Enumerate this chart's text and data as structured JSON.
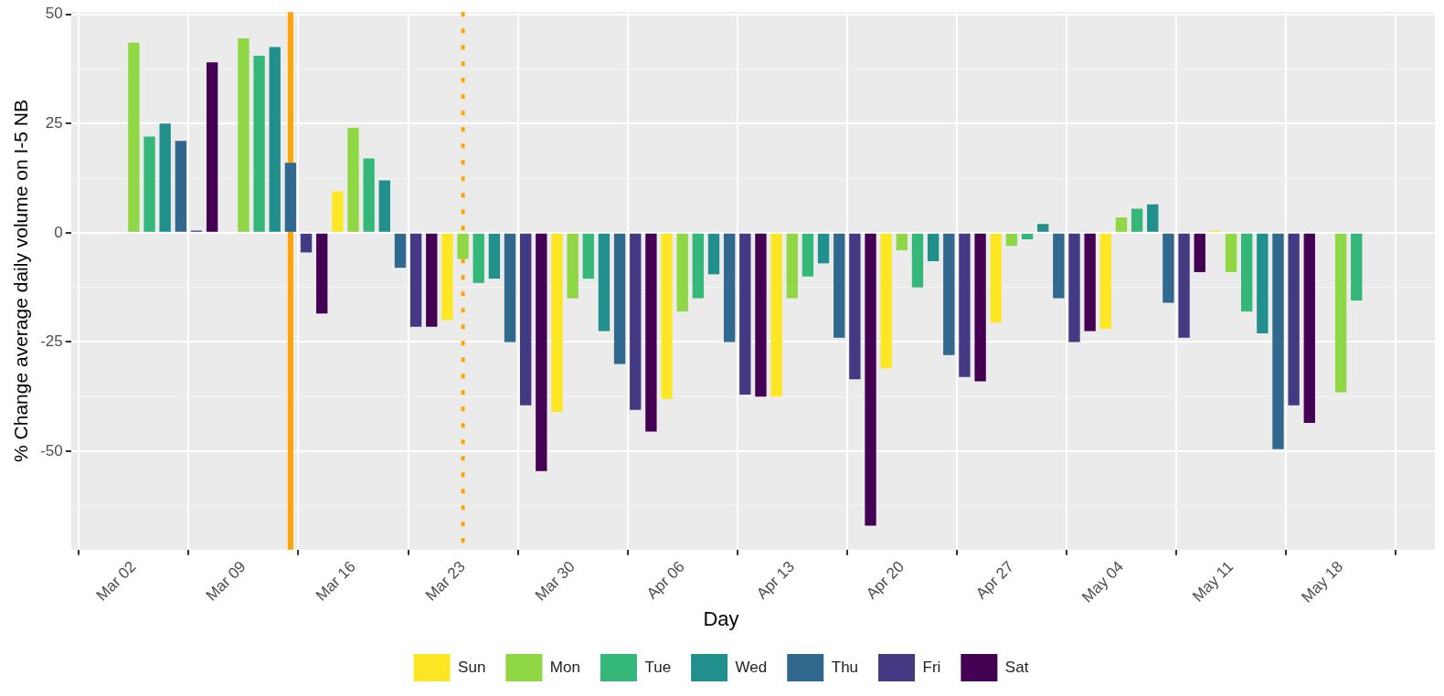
{
  "chart_data": {
    "type": "bar",
    "ylabel": "% Change average daily volume on I-5 NB",
    "legend_title": "Day",
    "legend": "bottom",
    "grid": true,
    "xlim": [
      "--02-27",
      "--05-24"
    ],
    "xticks": [
      {
        "value": "--03-02",
        "label": "Mar 02"
      },
      {
        "value": "--03-09",
        "label": "Mar 09"
      },
      {
        "value": "--03-16",
        "label": "Mar 16"
      },
      {
        "value": "--03-23",
        "label": "Mar 23"
      },
      {
        "value": "--03-30",
        "label": "Mar 30"
      },
      {
        "value": "--04-06",
        "label": "Apr 06"
      },
      {
        "value": "--04-13",
        "label": "Apr 13"
      },
      {
        "value": "--04-20",
        "label": "Apr 20"
      },
      {
        "value": "--04-27",
        "label": "Apr 27"
      },
      {
        "value": "--05-04",
        "label": "May 04"
      },
      {
        "value": "--05-11",
        "label": "May 11"
      },
      {
        "value": "--05-18",
        "label": "May 18"
      }
    ],
    "ylim": [
      -72.5,
      50.5
    ],
    "yticks": [
      {
        "value": -62.5,
        "label": null
      },
      -50,
      {
        "value": -37.5,
        "label": null
      },
      -25,
      {
        "value": -12.5,
        "label": null
      },
      0,
      {
        "value": 12.5,
        "label": null
      },
      25,
      {
        "value": 37.5,
        "label": null
      },
      50
    ],
    "ref_lines": [
      {
        "axis": "x",
        "value": "--03-12",
        "color": "#ffa500",
        "line_style": "solid"
      },
      {
        "axis": "x",
        "value": "--03-23",
        "color": "#ffa500",
        "line_style": "dotted"
      }
    ],
    "series": [
      {
        "name": "Sun",
        "color": "#fde725",
        "x": [
          "--03-15",
          "--03-22",
          "--03-29",
          "--04-05",
          "--04-12",
          "--04-19",
          "--04-26",
          "--05-03",
          "--05-10"
        ],
        "values": [
          9.5,
          -20,
          -41,
          -38,
          -37.5,
          -31,
          -20.5,
          -22,
          0.5
        ]
      },
      {
        "name": "Mon",
        "color": "#8fd744",
        "x": [
          "--03-02",
          "--03-09",
          "--03-16",
          "--03-23",
          "--03-30",
          "--04-06",
          "--04-13",
          "--04-20",
          "--04-27",
          "--05-04",
          "--05-11",
          "--05-18"
        ],
        "values": [
          43.5,
          44.5,
          24,
          -6,
          -15,
          -18,
          -15,
          -4,
          -3,
          3.5,
          -9,
          -36.5
        ]
      },
      {
        "name": "Tue",
        "color": "#35b779",
        "x": [
          "--03-03",
          "--03-10",
          "--03-17",
          "--03-24",
          "--03-31",
          "--04-07",
          "--04-14",
          "--04-21",
          "--04-28",
          "--05-05",
          "--05-12",
          "--05-19"
        ],
        "values": [
          22,
          40.5,
          17,
          -11.5,
          -10.5,
          -15,
          -10,
          -12.5,
          -1.5,
          5.5,
          -18,
          -15.5
        ]
      },
      {
        "name": "Wed",
        "color": "#21908d",
        "x": [
          "--03-04",
          "--03-11",
          "--03-18",
          "--03-25",
          "--04-01",
          "--04-08",
          "--04-15",
          "--04-22",
          "--04-29",
          "--05-06",
          "--05-13"
        ],
        "values": [
          25,
          42.5,
          12,
          -10.5,
          -22.5,
          -9.5,
          -7,
          -6.5,
          2,
          6.5,
          -23
        ]
      },
      {
        "name": "Thu",
        "color": "#31688e",
        "x": [
          "--03-05",
          "--03-12",
          "--03-19",
          "--03-26",
          "--04-02",
          "--04-09",
          "--04-16",
          "--04-23",
          "--04-30",
          "--05-07",
          "--05-14"
        ],
        "values": [
          21,
          16,
          -8,
          -25,
          -30,
          -25,
          -24,
          -28,
          -15,
          -16,
          -49.5
        ]
      },
      {
        "name": "Fri",
        "color": "#443a83",
        "x": [
          "--03-06",
          "--03-13",
          "--03-20",
          "--03-27",
          "--04-03",
          "--04-10",
          "--04-17",
          "--04-24",
          "--05-01",
          "--05-08",
          "--05-15"
        ],
        "values": [
          0.5,
          -4.5,
          -21.5,
          -39.5,
          -40.5,
          -37,
          -33.5,
          -33,
          -25,
          -24,
          -39.5
        ]
      },
      {
        "name": "Sat",
        "color": "#440154",
        "x": [
          "--03-07",
          "--03-14",
          "--03-21",
          "--03-28",
          "--04-04",
          "--04-11",
          "--04-18",
          "--04-25",
          "--05-02",
          "--05-09",
          "--05-16"
        ],
        "values": [
          39,
          -18.5,
          -21.5,
          -54.5,
          -45.5,
          -37.5,
          -67,
          -34,
          -22.5,
          -9,
          -43.5
        ]
      }
    ]
  }
}
